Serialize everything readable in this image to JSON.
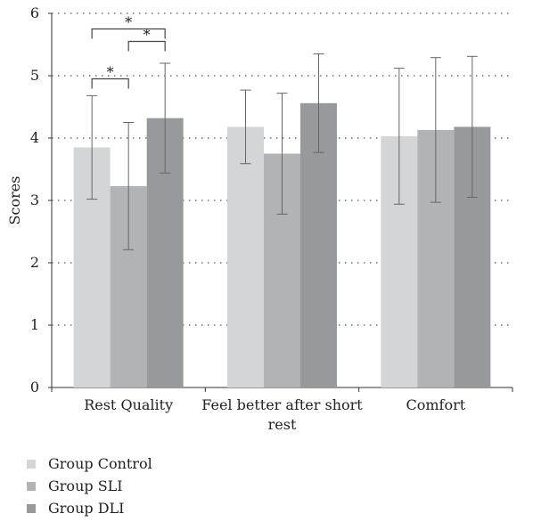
{
  "chart_data": {
    "type": "bar",
    "ylabel": "Scores",
    "ylim": [
      0,
      6
    ],
    "yticks": [
      "0",
      "1",
      "2",
      "3",
      "4",
      "5",
      "6"
    ],
    "categories": [
      [
        "Rest Quality"
      ],
      [
        "Feel better after short",
        "rest"
      ],
      [
        "Comfort"
      ]
    ],
    "series": [
      {
        "name": "Group Control",
        "color": "#d4d5d7",
        "values": [
          3.85,
          4.18,
          4.03
        ],
        "err": [
          0.83,
          0.59,
          1.09
        ]
      },
      {
        "name": "Group SLI",
        "color": "#b2b3b6",
        "values": [
          3.23,
          3.75,
          4.13
        ],
        "err": [
          1.02,
          0.97,
          1.16
        ]
      },
      {
        "name": "Group DLI",
        "color": "#98999c",
        "values": [
          4.32,
          4.56,
          4.18
        ],
        "err": [
          0.88,
          0.79,
          1.13
        ]
      }
    ],
    "grid": "horizontal dotted",
    "legend_position": "bottom-left",
    "annotations": [
      {
        "label": "*",
        "category": 0,
        "from": 0,
        "to": 1,
        "level": 4.95
      },
      {
        "label": "*",
        "category": 0,
        "from": 1,
        "to": 2,
        "level": 5.55
      },
      {
        "label": "*",
        "category": 0,
        "from": 0,
        "to": 2,
        "level": 5.75
      }
    ]
  }
}
